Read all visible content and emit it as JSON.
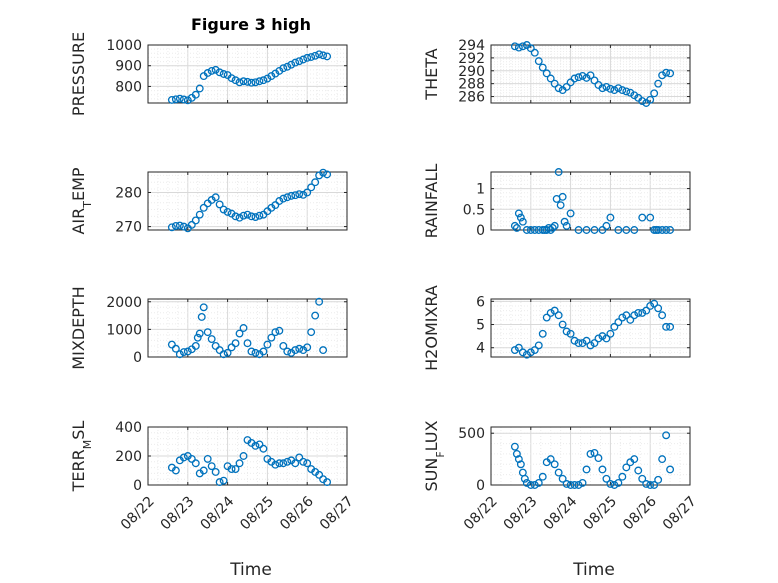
{
  "figure": {
    "title": "Figure 3 high",
    "xlabel": "Time",
    "marker_color": "#0072bd",
    "axis_color": "#262626",
    "grid_color": "#e6e6e6"
  },
  "chart_data": [
    {
      "type": "scatter",
      "ylabel": "PRESSURE",
      "ylabel_sub": "",
      "xlim": [
        "08/22",
        "08/27"
      ],
      "ylim": [
        720,
        1000
      ],
      "yticks": [
        800,
        900,
        1000
      ],
      "grid": true,
      "x": [
        22.6,
        22.7,
        22.8,
        22.9,
        23.0,
        23.1,
        23.2,
        23.3,
        23.4,
        23.5,
        23.6,
        23.7,
        23.8,
        23.9,
        24.0,
        24.1,
        24.2,
        24.3,
        24.4,
        24.5,
        24.6,
        24.7,
        24.8,
        24.9,
        25.0,
        25.1,
        25.2,
        25.3,
        25.4,
        25.5,
        25.6,
        25.7,
        25.8,
        25.9,
        26.0,
        26.1,
        26.2,
        26.3,
        26.4,
        26.5
      ],
      "y": [
        735,
        738,
        741,
        737,
        733,
        745,
        760,
        790,
        850,
        865,
        875,
        880,
        868,
        860,
        855,
        840,
        830,
        820,
        825,
        822,
        818,
        820,
        825,
        830,
        838,
        850,
        862,
        875,
        888,
        895,
        905,
        915,
        922,
        930,
        938,
        942,
        948,
        955,
        950,
        945
      ]
    },
    {
      "type": "scatter",
      "ylabel": "THETA",
      "ylabel_sub": "",
      "xlim": [
        "08/22",
        "08/27"
      ],
      "ylim": [
        285,
        294
      ],
      "yticks": [
        286,
        288,
        290,
        292,
        294
      ],
      "grid": true,
      "x": [
        22.6,
        22.7,
        22.8,
        22.9,
        23.0,
        23.1,
        23.2,
        23.3,
        23.4,
        23.5,
        23.6,
        23.7,
        23.8,
        23.9,
        24.0,
        24.1,
        24.2,
        24.3,
        24.4,
        24.5,
        24.6,
        24.7,
        24.8,
        24.9,
        25.0,
        25.1,
        25.2,
        25.3,
        25.4,
        25.5,
        25.6,
        25.7,
        25.8,
        25.9,
        26.0,
        26.1,
        26.2,
        26.3,
        26.4,
        26.5
      ],
      "y": [
        293.8,
        293.6,
        293.8,
        294.0,
        293.5,
        292.8,
        291.5,
        290.5,
        289.6,
        288.8,
        288.0,
        287.3,
        287.0,
        287.5,
        288.2,
        288.8,
        289.0,
        289.2,
        288.9,
        289.3,
        288.5,
        287.8,
        287.3,
        287.5,
        287.2,
        287.0,
        287.3,
        287.0,
        286.8,
        286.6,
        286.2,
        285.8,
        285.3,
        285.0,
        285.5,
        286.5,
        288.0,
        289.3,
        289.7,
        289.6
      ]
    },
    {
      "type": "scatter",
      "ylabel": "AIR",
      "ylabel_sub": "T",
      "ylabel_tail": "EMP",
      "xlim": [
        "08/22",
        "08/27"
      ],
      "ylim": [
        269,
        286
      ],
      "yticks": [
        270,
        280
      ],
      "grid": true,
      "x": [
        22.6,
        22.7,
        22.8,
        22.9,
        23.0,
        23.1,
        23.2,
        23.3,
        23.4,
        23.5,
        23.6,
        23.7,
        23.8,
        23.9,
        24.0,
        24.1,
        24.2,
        24.3,
        24.4,
        24.5,
        24.6,
        24.7,
        24.8,
        24.9,
        25.0,
        25.1,
        25.2,
        25.3,
        25.4,
        25.5,
        25.6,
        25.7,
        25.8,
        25.9,
        26.0,
        26.1,
        26.2,
        26.3,
        26.4,
        26.5
      ],
      "y": [
        269.8,
        270.2,
        270.3,
        270.0,
        269.5,
        270.5,
        271.8,
        273.5,
        275.5,
        276.8,
        277.8,
        278.6,
        276.5,
        275.0,
        274.3,
        273.8,
        273.0,
        272.6,
        273.2,
        273.5,
        273.0,
        272.8,
        273.2,
        273.5,
        274.5,
        275.5,
        276.3,
        277.5,
        278.2,
        278.6,
        279.0,
        279.2,
        279.5,
        279.3,
        280.0,
        281.5,
        283.0,
        285.0,
        285.8,
        285.3
      ]
    },
    {
      "type": "scatter",
      "ylabel": "RAINFALL",
      "ylabel_sub": "",
      "xlim": [
        "08/22",
        "08/27"
      ],
      "ylim": [
        0,
        1.4
      ],
      "yticks": [
        0,
        0.5,
        1
      ],
      "grid": true,
      "x": [
        22.6,
        22.65,
        22.7,
        22.75,
        22.8,
        22.9,
        23.0,
        23.1,
        23.2,
        23.3,
        23.35,
        23.4,
        23.45,
        23.5,
        23.55,
        23.6,
        23.65,
        23.7,
        23.75,
        23.8,
        23.85,
        23.9,
        24.0,
        24.2,
        24.4,
        24.6,
        24.8,
        24.9,
        25.0,
        25.2,
        25.4,
        25.6,
        25.8,
        26.0,
        26.1,
        26.15,
        26.2,
        26.3,
        26.4,
        26.5
      ],
      "y": [
        0.1,
        0.05,
        0.4,
        0.3,
        0.2,
        0.0,
        0.0,
        0.0,
        0.0,
        0.0,
        0.0,
        0.0,
        0.05,
        0.0,
        0.05,
        0.1,
        0.75,
        1.4,
        0.6,
        0.8,
        0.2,
        0.1,
        0.4,
        0.0,
        0.0,
        0.0,
        0.0,
        0.1,
        0.3,
        0.0,
        0.0,
        0.0,
        0.3,
        0.3,
        0.0,
        0.0,
        0.0,
        0.0,
        0.0,
        0.0
      ]
    },
    {
      "type": "scatter",
      "ylabel": "MIXDEPTH",
      "ylabel_sub": "",
      "xlim": [
        "08/22",
        "08/27"
      ],
      "ylim": [
        0,
        2100
      ],
      "yticks": [
        0,
        1000,
        2000
      ],
      "grid": true,
      "x": [
        22.6,
        22.7,
        22.8,
        22.9,
        23.0,
        23.1,
        23.2,
        23.25,
        23.3,
        23.35,
        23.4,
        23.5,
        23.6,
        23.7,
        23.8,
        23.9,
        24.0,
        24.1,
        24.2,
        24.3,
        24.4,
        24.5,
        24.6,
        24.7,
        24.8,
        24.9,
        25.0,
        25.1,
        25.2,
        25.3,
        25.4,
        25.5,
        25.6,
        25.7,
        25.8,
        25.9,
        26.0,
        26.1,
        26.2,
        26.3,
        26.4
      ],
      "y": [
        450,
        300,
        100,
        180,
        200,
        280,
        400,
        700,
        850,
        1450,
        1800,
        900,
        650,
        400,
        250,
        100,
        150,
        350,
        500,
        850,
        1050,
        500,
        200,
        150,
        100,
        200,
        450,
        700,
        900,
        950,
        400,
        200,
        150,
        250,
        300,
        250,
        350,
        900,
        1500,
        2000,
        250
      ]
    },
    {
      "type": "scatter",
      "ylabel": "H2OMIXRA",
      "ylabel_sub": "",
      "xlim": [
        "08/22",
        "08/27"
      ],
      "ylim": [
        3.6,
        6.1
      ],
      "yticks": [
        4,
        5,
        6
      ],
      "grid": true,
      "x": [
        22.6,
        22.7,
        22.8,
        22.9,
        23.0,
        23.1,
        23.2,
        23.3,
        23.4,
        23.5,
        23.6,
        23.7,
        23.8,
        23.9,
        24.0,
        24.1,
        24.2,
        24.3,
        24.4,
        24.5,
        24.6,
        24.7,
        24.8,
        24.9,
        25.0,
        25.1,
        25.2,
        25.3,
        25.4,
        25.5,
        25.6,
        25.7,
        25.8,
        25.9,
        26.0,
        26.1,
        26.2,
        26.3,
        26.4,
        26.5
      ],
      "y": [
        3.9,
        4.0,
        3.8,
        3.7,
        3.8,
        3.9,
        4.1,
        4.6,
        5.3,
        5.5,
        5.6,
        5.4,
        5.0,
        4.7,
        4.6,
        4.3,
        4.2,
        4.2,
        4.3,
        4.1,
        4.2,
        4.4,
        4.5,
        4.4,
        4.6,
        4.9,
        5.1,
        5.3,
        5.4,
        5.2,
        5.4,
        5.5,
        5.5,
        5.6,
        5.8,
        5.9,
        5.7,
        5.4,
        4.9,
        4.9
      ]
    },
    {
      "type": "scatter",
      "ylabel": "TERR",
      "ylabel_sub": "M",
      "ylabel_tail": "SL",
      "xlim": [
        "08/22",
        "08/27"
      ],
      "ylim": [
        0,
        400
      ],
      "yticks": [
        0,
        200,
        400
      ],
      "grid": true,
      "x": [
        22.6,
        22.7,
        22.8,
        22.9,
        23.0,
        23.1,
        23.2,
        23.3,
        23.4,
        23.5,
        23.6,
        23.7,
        23.8,
        23.9,
        24.0,
        24.1,
        24.2,
        24.3,
        24.4,
        24.5,
        24.6,
        24.7,
        24.8,
        24.9,
        25.0,
        25.1,
        25.2,
        25.3,
        25.4,
        25.5,
        25.6,
        25.7,
        25.8,
        25.9,
        26.0,
        26.1,
        26.2,
        26.3,
        26.4,
        26.5
      ],
      "y": [
        120,
        100,
        170,
        190,
        200,
        180,
        150,
        80,
        100,
        180,
        130,
        90,
        20,
        30,
        130,
        110,
        110,
        150,
        200,
        310,
        290,
        270,
        280,
        250,
        180,
        160,
        140,
        150,
        150,
        160,
        170,
        150,
        190,
        160,
        150,
        110,
        90,
        70,
        40,
        20
      ]
    },
    {
      "type": "scatter",
      "ylabel": "SUN",
      "ylabel_sub": "F",
      "ylabel_tail": "LUX",
      "xlim": [
        "08/22",
        "08/27"
      ],
      "ylim": [
        0,
        560
      ],
      "yticks": [
        0,
        500
      ],
      "grid": true,
      "x": [
        22.6,
        22.65,
        22.7,
        22.75,
        22.8,
        22.85,
        22.9,
        23.0,
        23.1,
        23.2,
        23.3,
        23.4,
        23.5,
        23.6,
        23.7,
        23.8,
        23.9,
        24.0,
        24.1,
        24.2,
        24.3,
        24.4,
        24.5,
        24.6,
        24.7,
        24.8,
        24.9,
        25.0,
        25.1,
        25.2,
        25.3,
        25.4,
        25.5,
        25.6,
        25.7,
        25.8,
        25.9,
        26.0,
        26.1,
        26.2,
        26.3,
        26.4,
        26.5
      ],
      "y": [
        370,
        300,
        250,
        200,
        120,
        60,
        20,
        0,
        0,
        20,
        80,
        220,
        250,
        200,
        120,
        60,
        10,
        0,
        0,
        0,
        20,
        150,
        300,
        310,
        260,
        150,
        60,
        10,
        0,
        20,
        80,
        170,
        220,
        250,
        140,
        60,
        10,
        0,
        0,
        50,
        250,
        480,
        150
      ]
    }
  ]
}
